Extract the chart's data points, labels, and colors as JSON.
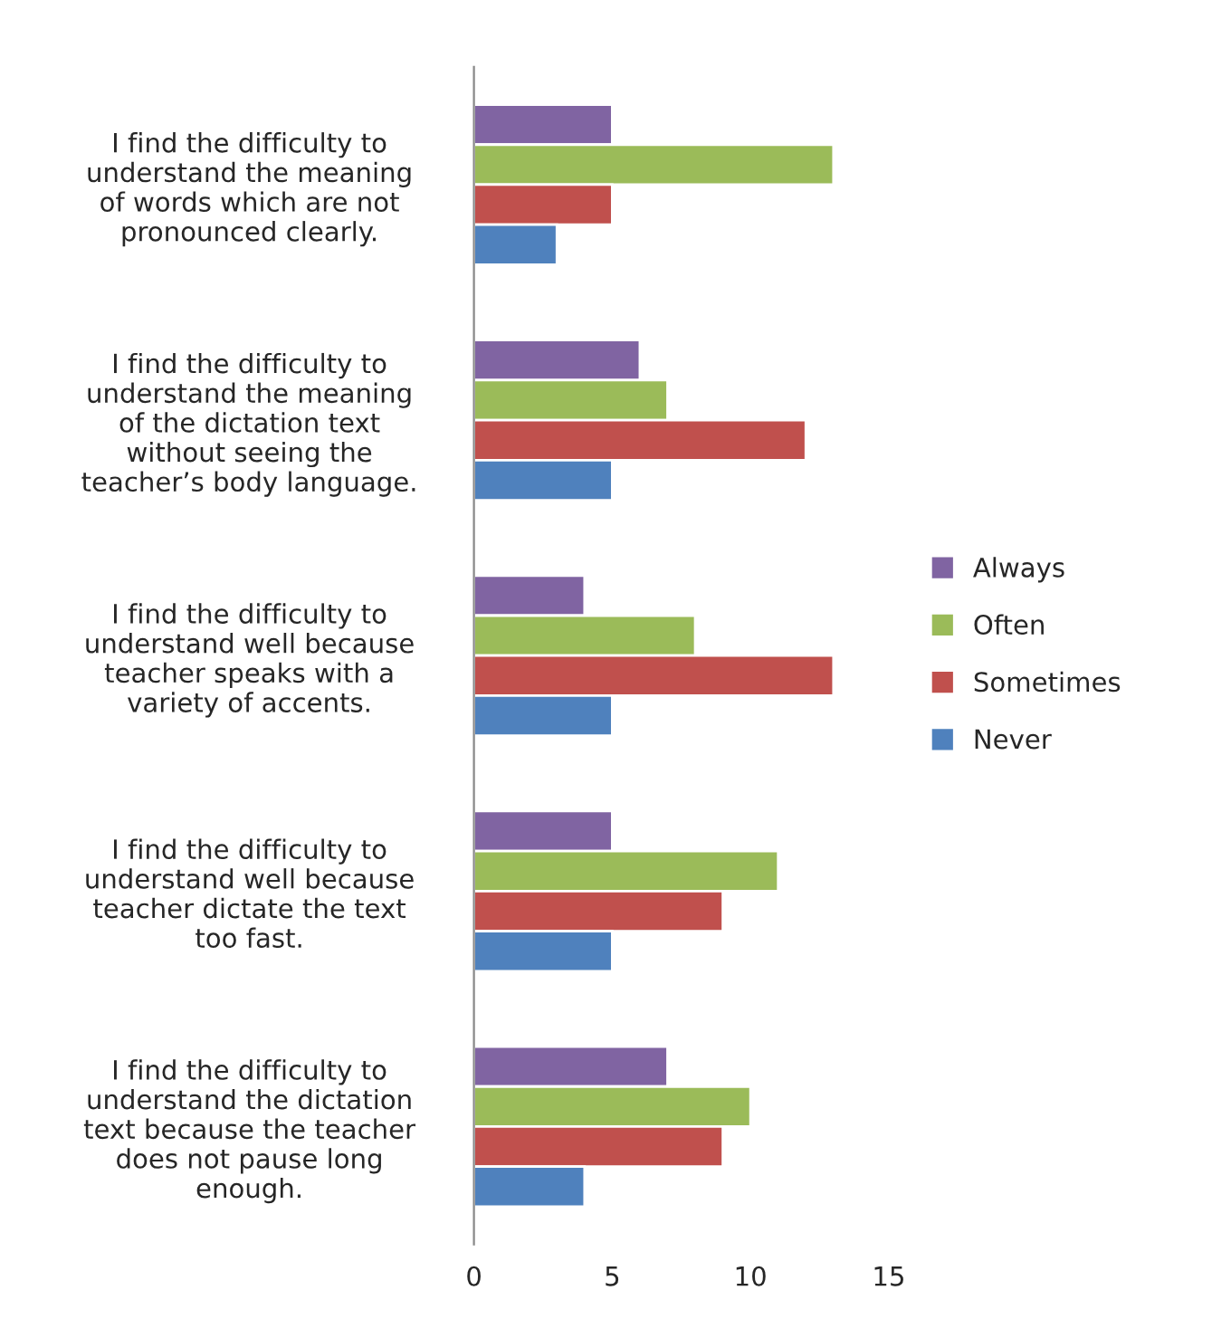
{
  "chart_data": {
    "type": "bar",
    "orientation": "horizontal",
    "categories": [
      "I find the difficulty to\nunderstand the meaning\nof words which are not\npronounced clearly.",
      "I find the difficulty to\nunderstand the meaning\nof the dictation text\nwithout seeing the\nteacher’s body language.",
      "I find the difficulty to\nunderstand well because\nteacher speaks with a\nvariety of accents.",
      "I find the difficulty to\nunderstand well because\nteacher dictate the text\ntoo fast.",
      "I find the difficulty to\nunderstand the dictation\ntext because the teacher\ndoes not pause long\nenough."
    ],
    "series": [
      {
        "name": "Always",
        "color": "#8064a2",
        "values": [
          5,
          6,
          4,
          5,
          7
        ]
      },
      {
        "name": "Often",
        "color": "#9bbb59",
        "values": [
          13,
          7,
          8,
          11,
          10
        ]
      },
      {
        "name": "Sometimes",
        "color": "#c0504d",
        "values": [
          5,
          12,
          13,
          9,
          9
        ]
      },
      {
        "name": "Never",
        "color": "#4f81bd",
        "values": [
          3,
          5,
          5,
          5,
          4
        ]
      }
    ],
    "xlim": [
      0,
      15
    ],
    "xticks": [
      0,
      5,
      10,
      15
    ],
    "grid": false,
    "legend": "right"
  }
}
